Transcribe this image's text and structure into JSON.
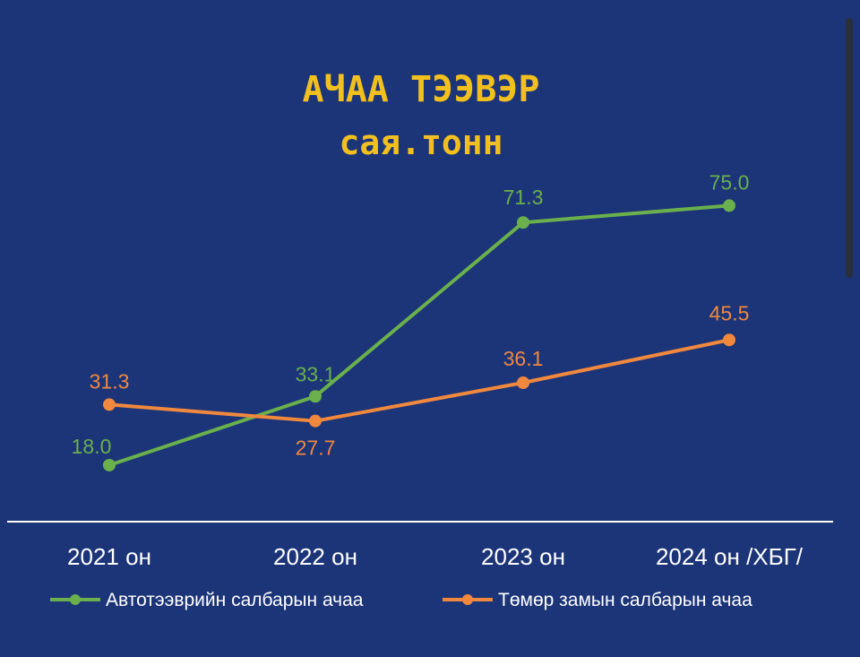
{
  "chart_data": {
    "type": "line",
    "title": "АЧАА ТЭЭВЭР",
    "subtitle": "сая.тонн",
    "categories": [
      "2021 он",
      "2022 он",
      "2023 он",
      "2024 он /ХБГ/"
    ],
    "series": [
      {
        "name": "Автотээврийн салбарын ачаа",
        "color": "#6ab04c",
        "values": [
          18.0,
          33.1,
          71.3,
          75.0
        ],
        "labels": [
          "18.0",
          "33.1",
          "71.3",
          "75.0"
        ]
      },
      {
        "name": "Төмөр замын салбарын ачаа",
        "color": "#f0883e",
        "values": [
          31.3,
          27.7,
          36.1,
          45.5
        ],
        "labels": [
          "31.3",
          "27.7",
          "36.1",
          "45.5"
        ]
      }
    ],
    "xlabel": "",
    "ylabel": "",
    "grid": false,
    "legend_position": "bottom",
    "axis_color": "#ffffff"
  }
}
